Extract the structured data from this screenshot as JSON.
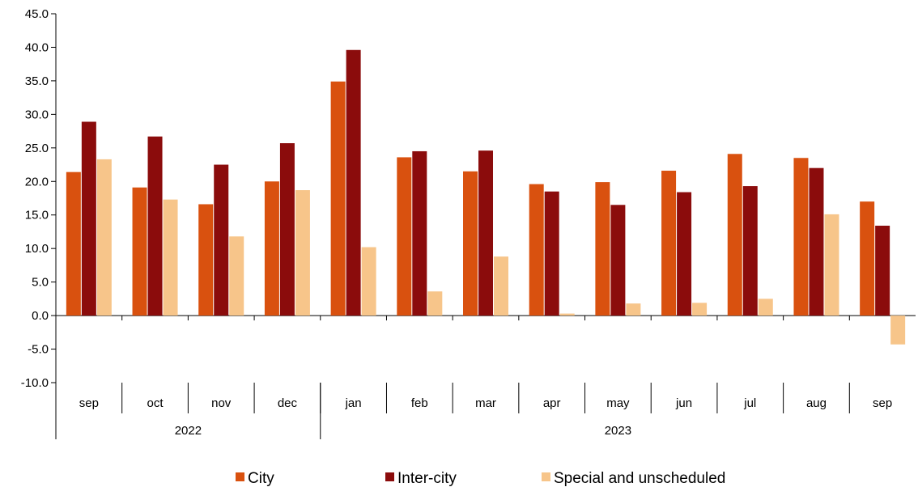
{
  "chart_data": {
    "type": "bar",
    "categories": [
      "sep",
      "oct",
      "nov",
      "dec",
      "jan",
      "feb",
      "mar",
      "apr",
      "may",
      "jun",
      "jul",
      "aug",
      "sep"
    ],
    "groups": [
      {
        "label": "2022",
        "count": 4
      },
      {
        "label": "2023",
        "count": 9
      }
    ],
    "series": [
      {
        "name": "City",
        "color": "#D9510F",
        "values": [
          21.4,
          19.1,
          16.6,
          20.0,
          34.9,
          23.6,
          21.5,
          19.6,
          19.9,
          21.6,
          24.1,
          23.5,
          17.0
        ]
      },
      {
        "name": "Inter-city",
        "color": "#8B0C0C",
        "values": [
          28.9,
          26.7,
          22.5,
          25.7,
          39.6,
          24.5,
          24.6,
          18.5,
          16.5,
          18.4,
          19.3,
          22.0,
          13.4
        ]
      },
      {
        "name": "Special and unscheduled",
        "color": "#F7C58A",
        "values": [
          23.3,
          17.3,
          11.8,
          18.7,
          10.2,
          3.6,
          8.8,
          0.3,
          1.8,
          1.9,
          2.5,
          15.1,
          -4.3
        ]
      }
    ],
    "ylim": [
      -10,
      45
    ],
    "yticks": [
      "-10.0",
      "-5.0",
      "0.0",
      "5.0",
      "10.0",
      "15.0",
      "20.0",
      "25.0",
      "30.0",
      "35.0",
      "40.0",
      "45.0"
    ],
    "ytick_values": [
      -10,
      -5,
      0,
      5,
      10,
      15,
      20,
      25,
      30,
      35,
      40,
      45
    ],
    "grid": false,
    "legend_position": "bottom"
  }
}
